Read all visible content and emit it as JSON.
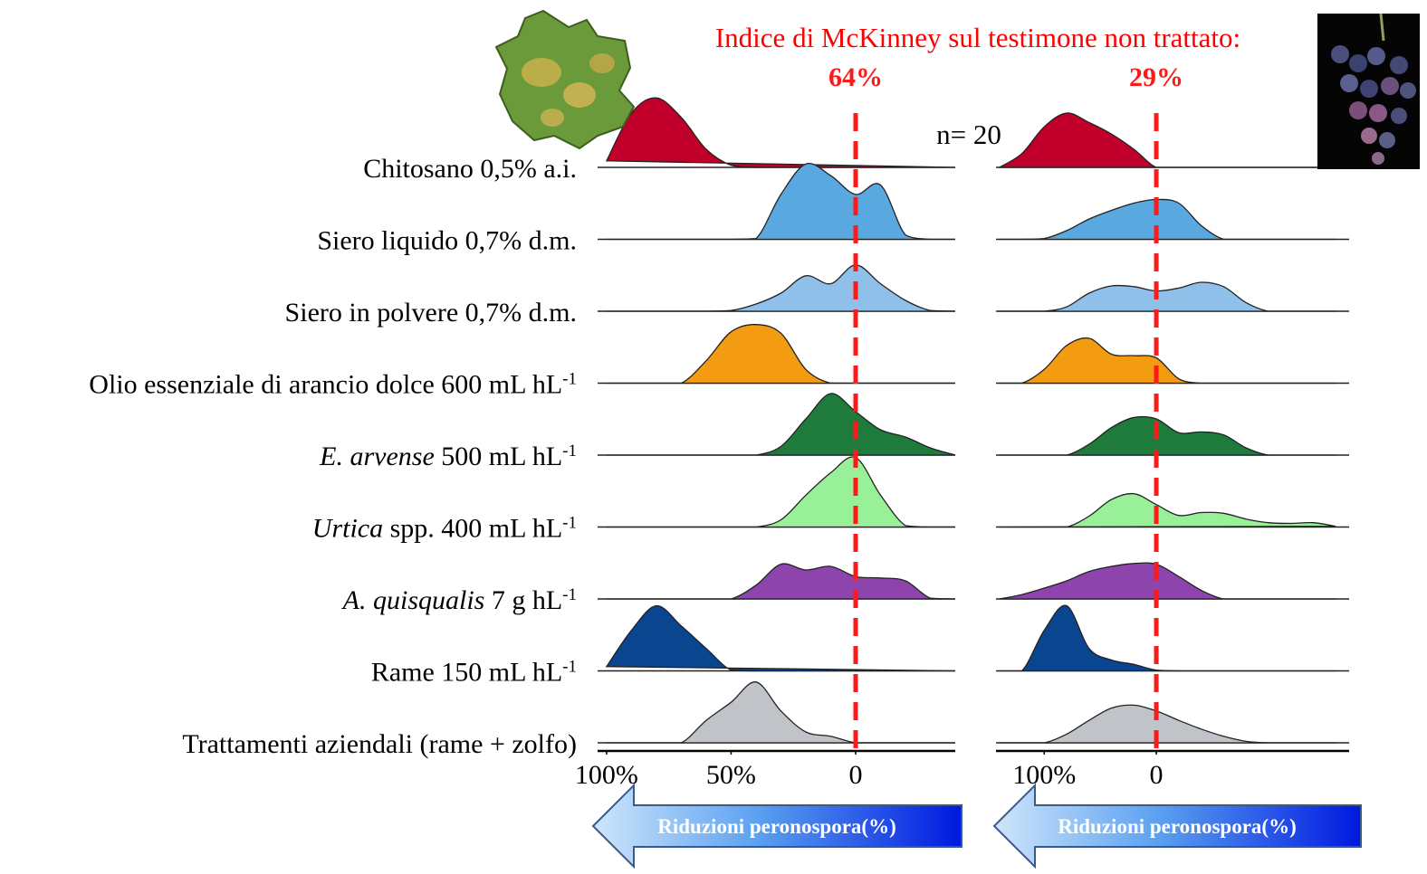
{
  "title": "Indice di McKinney sul testimone non trattato:",
  "sample_size": "n= 20",
  "row_labels": [
    [
      {
        "text": "Chitosano 0,5% a.i."
      }
    ],
    [
      {
        "text": "Siero liquido 0,7% d.m."
      }
    ],
    [
      {
        "text": "Siero in polvere 0,7% d.m."
      }
    ],
    [
      {
        "text": "Olio essenziale di arancio dolce 600 mL hL"
      },
      {
        "text": "-1",
        "sup": true
      }
    ],
    [
      {
        "text": "E. arvense",
        "italic": true
      },
      {
        "text": " 500 mL hL"
      },
      {
        "text": "-1",
        "sup": true
      }
    ],
    [
      {
        "text": "Urtica",
        "italic": true
      },
      {
        "text": " spp. 400 mL hL"
      },
      {
        "text": "-1",
        "sup": true
      }
    ],
    [
      {
        "text": "A. quisqualis",
        "italic": true
      },
      {
        "text": " 7 g hL"
      },
      {
        "text": "-1",
        "sup": true
      }
    ],
    [
      {
        "text": "Rame 150 mL hL"
      },
      {
        "text": "-1",
        "sup": true
      }
    ],
    [
      {
        "text": "Trattamenti aziendali (rame + zolfo)"
      }
    ]
  ],
  "chart_data": [
    {
      "type": "ridgeline",
      "subtitle": "64%",
      "arrow_label": "Riduzioni peronospora(%)",
      "x": [
        100,
        90,
        80,
        70,
        60,
        50,
        40,
        30,
        20,
        10,
        0,
        -10,
        -20,
        -30,
        -40
      ],
      "xlim": [
        103.6,
        -40
      ],
      "xticks": [
        {
          "value": 100,
          "label": "100%"
        },
        {
          "value": 50,
          "label": "50%"
        },
        0
      ],
      "ylim": [
        0,
        110
      ],
      "series": [
        {
          "color": "#c0002a",
          "values": [
            9,
            75,
            96,
            69,
            25,
            3,
            0,
            0,
            0,
            0,
            0,
            0,
            0,
            0,
            0
          ]
        },
        {
          "color": "#5aa8e0",
          "values": [
            0,
            0,
            0,
            0,
            0,
            0,
            1,
            62,
            104,
            88,
            62,
            75,
            6,
            0,
            0
          ]
        },
        {
          "color": "#8ec0ea",
          "values": [
            0,
            0,
            0,
            0,
            0,
            1,
            10,
            25,
            49,
            38,
            64,
            38,
            15,
            1,
            0
          ]
        },
        {
          "color": "#f39c12",
          "values": [
            0,
            0,
            0,
            0,
            31,
            71,
            81,
            69,
            19,
            0,
            0,
            0,
            0,
            0,
            0
          ]
        },
        {
          "color": "#1e7b3c",
          "values": [
            0,
            0,
            0,
            0,
            0,
            0,
            0,
            12,
            50,
            85,
            60,
            35,
            25,
            10,
            0
          ]
        },
        {
          "color": "#98f098",
          "values": [
            0,
            0,
            0,
            0,
            0,
            0,
            0,
            10,
            44,
            75,
            96,
            44,
            2,
            0,
            0
          ]
        },
        {
          "color": "#8e44ad",
          "values": [
            0,
            0,
            0,
            0,
            0,
            0,
            19,
            48,
            40,
            45,
            31,
            29,
            25,
            1,
            0
          ]
        },
        {
          "color": "#0a4590",
          "values": [
            6,
            56,
            90,
            62,
            31,
            1,
            0,
            0,
            0,
            0,
            0,
            0,
            0,
            0,
            0
          ]
        },
        {
          "color": "#c0c4c8",
          "values": [
            0,
            0,
            0,
            0,
            31,
            56,
            84,
            44,
            15,
            9,
            0,
            0,
            0,
            0,
            0
          ]
        }
      ]
    },
    {
      "type": "ridgeline",
      "subtitle": "29%",
      "arrow_label": "Riduzioni peronospora(%)",
      "x": [
        140,
        120,
        100,
        80,
        60,
        40,
        20,
        0,
        -20,
        -40,
        -60,
        -80,
        -100,
        -120,
        -140,
        -160
      ],
      "xlim": [
        143,
        -172
      ],
      "xticks": [
        {
          "value": 100,
          "label": "100%"
        },
        0
      ],
      "ylim": [
        0,
        110
      ],
      "series": [
        {
          "color": "#c0002a",
          "values": [
            0,
            19,
            56,
            75,
            62,
            46,
            25,
            0,
            0,
            0,
            0,
            0,
            0,
            0,
            0,
            0
          ]
        },
        {
          "color": "#5aa8e0",
          "values": [
            0,
            0,
            1,
            12,
            28,
            40,
            50,
            55,
            50,
            19,
            0,
            0,
            0,
            0,
            0,
            0
          ]
        },
        {
          "color": "#8ec0ea",
          "values": [
            0,
            0,
            0,
            6,
            25,
            35,
            34,
            28,
            32,
            40,
            34,
            12,
            0,
            0,
            0,
            0
          ]
        },
        {
          "color": "#f39c12",
          "values": [
            0,
            0,
            19,
            52,
            62,
            40,
            38,
            35,
            6,
            0,
            0,
            0,
            0,
            0,
            0,
            0
          ]
        },
        {
          "color": "#1e7b3c",
          "values": [
            0,
            0,
            0,
            0,
            15,
            38,
            52,
            50,
            31,
            32,
            28,
            10,
            0,
            0,
            0,
            0
          ]
        },
        {
          "color": "#98f098",
          "values": [
            0,
            0,
            0,
            0,
            15,
            38,
            46,
            31,
            16,
            20,
            19,
            11,
            6,
            5,
            6,
            1
          ]
        },
        {
          "color": "#8e44ad",
          "values": [
            0,
            6,
            15,
            25,
            38,
            45,
            49,
            48,
            31,
            12,
            0,
            0,
            0,
            0,
            0,
            0
          ]
        },
        {
          "color": "#0a4590",
          "values": [
            0,
            0,
            56,
            90,
            31,
            15,
            9,
            1,
            0,
            0,
            0,
            0,
            0,
            0,
            0,
            0
          ]
        },
        {
          "color": "#c0c4c8",
          "values": [
            0,
            0,
            0,
            12,
            31,
            48,
            52,
            44,
            31,
            19,
            9,
            2,
            0,
            0,
            0,
            0
          ]
        }
      ]
    }
  ]
}
